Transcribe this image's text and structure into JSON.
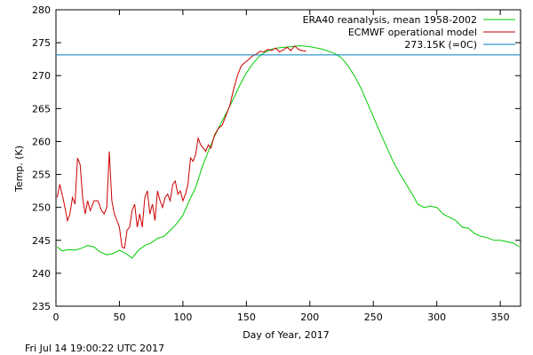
{
  "footer_timestamp": "Fri Jul 14 19:00:22 UTC 2017",
  "chart_data": {
    "type": "line",
    "xlabel": "Day of Year, 2017",
    "ylabel": "Temp. (K)",
    "xlim": [
      0,
      366
    ],
    "ylim": [
      235,
      280
    ],
    "xticks": [
      0,
      50,
      100,
      150,
      200,
      250,
      300,
      350
    ],
    "yticks": [
      235,
      240,
      245,
      250,
      255,
      260,
      265,
      270,
      275,
      280
    ],
    "grid": false,
    "legend_position": "top-right",
    "series": [
      {
        "name": "ERA40 reanalysis, mean 1958-2002",
        "color": "#00cc00",
        "x": [
          1,
          5,
          10,
          15,
          20,
          25,
          30,
          35,
          40,
          45,
          50,
          55,
          60,
          65,
          70,
          75,
          80,
          85,
          90,
          95,
          100,
          105,
          110,
          115,
          120,
          125,
          130,
          135,
          140,
          145,
          150,
          155,
          160,
          165,
          170,
          175,
          180,
          185,
          190,
          195,
          200,
          205,
          210,
          215,
          220,
          225,
          230,
          235,
          240,
          245,
          250,
          255,
          260,
          265,
          270,
          275,
          280,
          285,
          290,
          295,
          300,
          305,
          310,
          315,
          320,
          325,
          330,
          335,
          340,
          345,
          350,
          355,
          360,
          365
        ],
        "y": [
          244.0,
          243.4,
          243.6,
          243.5,
          243.8,
          244.2,
          244.0,
          243.2,
          242.8,
          243.0,
          243.5,
          243.0,
          242.3,
          243.5,
          244.2,
          244.6,
          245.3,
          245.6,
          246.5,
          247.5,
          248.8,
          251.0,
          253.0,
          256.0,
          258.5,
          260.8,
          262.8,
          264.6,
          266.6,
          268.6,
          270.4,
          271.8,
          272.9,
          273.6,
          274.0,
          274.2,
          274.3,
          274.4,
          274.5,
          274.5,
          274.4,
          274.2,
          274.0,
          273.7,
          273.3,
          272.7,
          271.5,
          270.0,
          268.2,
          266.0,
          263.8,
          261.5,
          259.4,
          257.2,
          255.4,
          253.8,
          252.2,
          250.5,
          250.0,
          250.2,
          250.0,
          249.0,
          248.5,
          248.0,
          247.0,
          246.8,
          246.0,
          245.6,
          245.4,
          245.0,
          245.0,
          244.8,
          244.6,
          244.0
        ]
      },
      {
        "name": "ECMWF operational model",
        "color": "#cc0000",
        "x": [
          1,
          3,
          6,
          9,
          11,
          13,
          15,
          17,
          19,
          21,
          23,
          25,
          27,
          30,
          33,
          36,
          38,
          40,
          42,
          44,
          46,
          48,
          50,
          52,
          54,
          56,
          58,
          60,
          62,
          64,
          66,
          68,
          70,
          72,
          74,
          76,
          78,
          80,
          82,
          84,
          86,
          88,
          90,
          92,
          94,
          96,
          98,
          100,
          102,
          104,
          106,
          108,
          110,
          112,
          114,
          116,
          118,
          120,
          122,
          125,
          128,
          131,
          134,
          137,
          140,
          143,
          146,
          149,
          152,
          155,
          158,
          161,
          164,
          167,
          170,
          173,
          176,
          179,
          182,
          185,
          188,
          191,
          194,
          197
        ],
        "y": [
          251.5,
          253.5,
          251.0,
          248.0,
          249.0,
          251.5,
          250.5,
          257.5,
          256.5,
          251.5,
          249.0,
          251.0,
          249.5,
          251.0,
          251.0,
          249.5,
          249.0,
          250.0,
          258.5,
          251.0,
          249.0,
          248.0,
          247.0,
          244.0,
          243.8,
          246.5,
          247.0,
          249.5,
          250.5,
          247.0,
          249.0,
          247.0,
          251.5,
          252.5,
          249.0,
          250.5,
          248.0,
          252.5,
          251.0,
          250.0,
          251.5,
          252.0,
          251.0,
          253.5,
          254.0,
          252.0,
          252.5,
          251.0,
          252.0,
          253.5,
          257.5,
          257.0,
          258.0,
          260.5,
          259.5,
          259.0,
          258.5,
          259.5,
          259.0,
          261.0,
          262.0,
          262.5,
          264.0,
          265.5,
          268.0,
          270.0,
          271.5,
          272.0,
          272.5,
          273.0,
          273.3,
          273.7,
          273.6,
          274.0,
          273.8,
          274.2,
          273.6,
          273.9,
          274.3,
          273.8,
          274.5,
          274.0,
          273.8,
          273.7
        ]
      },
      {
        "name": "273.15K (=0C)",
        "color": "#0080c0",
        "constant": 273.15
      }
    ]
  }
}
